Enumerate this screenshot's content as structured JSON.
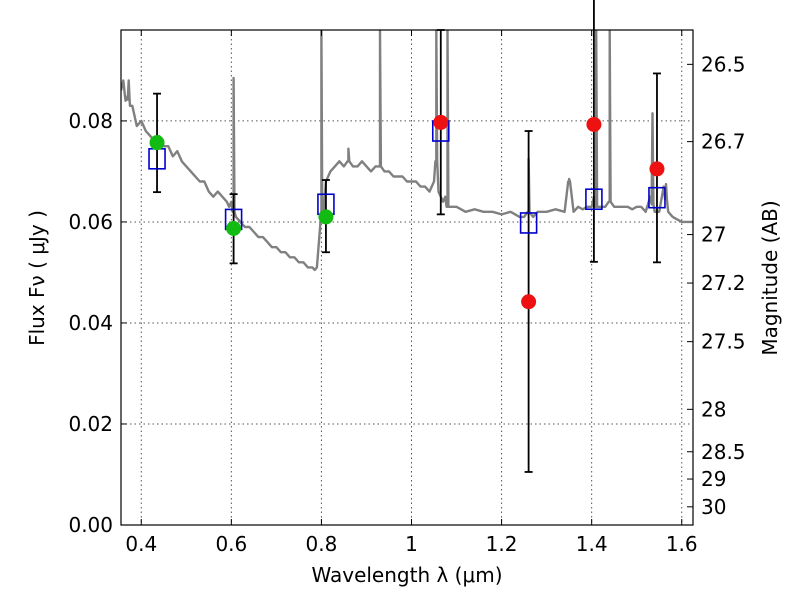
{
  "chart_data": {
    "type": "scatter",
    "xlabel": "Wavelength  λ (μm)",
    "ylabel": "Flux  Fν  ( μJy )",
    "y2label": "Magnitude (AB)",
    "xlim": [
      0.355,
      1.625
    ],
    "ylim": [
      0.0,
      0.098
    ],
    "grid": true,
    "x_ticks": [
      "0.4",
      "0.6",
      "0.8",
      "1",
      "1.2",
      "1.4",
      "1.6"
    ],
    "x_tick_values": [
      0.4,
      0.6,
      0.8,
      1.0,
      1.2,
      1.4,
      1.6
    ],
    "y_ticks": [
      "0.00",
      "0.02",
      "0.04",
      "0.06",
      "0.08"
    ],
    "y_tick_values": [
      0.0,
      0.02,
      0.04,
      0.06,
      0.08
    ],
    "y2_ticks": [
      {
        "label": "26.5",
        "flux": 0.0912
      },
      {
        "label": "26.7",
        "flux": 0.0759
      },
      {
        "label": "27",
        "flux": 0.0575
      },
      {
        "label": "27.2",
        "flux": 0.0479
      },
      {
        "label": "27.5",
        "flux": 0.0363
      },
      {
        "label": "28",
        "flux": 0.0229
      },
      {
        "label": "28.5",
        "flux": 0.0145
      },
      {
        "label": "29",
        "flux": 0.0091
      },
      {
        "label": "30",
        "flux": 0.0036
      }
    ],
    "colors": {
      "model": "#808080",
      "model_photometry": "#0000cc",
      "detections_green": "#11bb11",
      "detections_red": "#ee1111",
      "errorbar": "#000000"
    },
    "model_spectrum": {
      "x": [
        0.355,
        0.36,
        0.365,
        0.37,
        0.375,
        0.38,
        0.39,
        0.4,
        0.41,
        0.42,
        0.43,
        0.44,
        0.45,
        0.46,
        0.47,
        0.48,
        0.49,
        0.5,
        0.51,
        0.52,
        0.53,
        0.54,
        0.55,
        0.56,
        0.57,
        0.58,
        0.59,
        0.595,
        0.6,
        0.605,
        0.61,
        0.62,
        0.63,
        0.64,
        0.65,
        0.66,
        0.67,
        0.68,
        0.69,
        0.7,
        0.71,
        0.72,
        0.73,
        0.74,
        0.75,
        0.76,
        0.77,
        0.78,
        0.785,
        0.79,
        0.8,
        0.805,
        0.81,
        0.82,
        0.83,
        0.84,
        0.85,
        0.86,
        0.87,
        0.88,
        0.89,
        0.9,
        0.91,
        0.92,
        0.93,
        0.94,
        0.95,
        0.96,
        0.97,
        0.98,
        0.99,
        1.0,
        1.01,
        1.02,
        1.03,
        1.04,
        1.05,
        1.055,
        1.06,
        1.065,
        1.07,
        1.075,
        1.08,
        1.09,
        1.1,
        1.12,
        1.14,
        1.16,
        1.18,
        1.2,
        1.22,
        1.24,
        1.25,
        1.26,
        1.27,
        1.28,
        1.3,
        1.32,
        1.34,
        1.35,
        1.36,
        1.37,
        1.38,
        1.39,
        1.4,
        1.405,
        1.41,
        1.42,
        1.43,
        1.44,
        1.45,
        1.46,
        1.47,
        1.48,
        1.49,
        1.5,
        1.51,
        1.52,
        1.53,
        1.54,
        1.55,
        1.56,
        1.57,
        1.58,
        1.6,
        1.625
      ],
      "y": [
        0.086,
        0.088,
        0.084,
        0.085,
        0.083,
        0.083,
        0.079,
        0.08,
        0.078,
        0.077,
        0.076,
        0.077,
        0.075,
        0.075,
        0.073,
        0.074,
        0.072,
        0.071,
        0.07,
        0.069,
        0.068,
        0.068,
        0.066,
        0.065,
        0.066,
        0.065,
        0.064,
        0.063,
        0.064,
        0.062,
        0.061,
        0.06,
        0.059,
        0.059,
        0.058,
        0.057,
        0.057,
        0.056,
        0.055,
        0.055,
        0.054,
        0.054,
        0.053,
        0.053,
        0.052,
        0.052,
        0.051,
        0.051,
        0.0505,
        0.051,
        0.06,
        0.062,
        0.068,
        0.07,
        0.071,
        0.072,
        0.071,
        0.072,
        0.071,
        0.071,
        0.072,
        0.071,
        0.07,
        0.071,
        0.071,
        0.07,
        0.07,
        0.069,
        0.069,
        0.069,
        0.068,
        0.068,
        0.068,
        0.067,
        0.067,
        0.066,
        0.068,
        0.072,
        0.066,
        0.065,
        0.064,
        0.065,
        0.063,
        0.063,
        0.063,
        0.062,
        0.0625,
        0.062,
        0.062,
        0.0615,
        0.062,
        0.061,
        0.061,
        0.062,
        0.061,
        0.062,
        0.062,
        0.0625,
        0.062,
        0.068,
        0.062,
        0.063,
        0.0625,
        0.063,
        0.063,
        0.065,
        0.063,
        0.063,
        0.063,
        0.064,
        0.063,
        0.063,
        0.063,
        0.063,
        0.0625,
        0.063,
        0.063,
        0.062,
        0.065,
        0.062,
        0.062,
        0.067,
        0.062,
        0.061,
        0.06,
        0.06
      ]
    },
    "emission_lines": [
      {
        "x": 0.372,
        "peak": 0.088
      },
      {
        "x": 0.605,
        "peak": 0.0885
      },
      {
        "x": 0.8,
        "peak": 0.098
      },
      {
        "x": 0.86,
        "peak": 0.0745
      },
      {
        "x": 0.93,
        "peak": 0.098
      },
      {
        "x": 1.055,
        "peak": 0.098
      },
      {
        "x": 1.08,
        "peak": 0.098
      },
      {
        "x": 1.26,
        "peak": 0.0725
      },
      {
        "x": 1.35,
        "peak": 0.0685
      },
      {
        "x": 1.41,
        "peak": 0.098
      },
      {
        "x": 1.44,
        "peak": 0.098
      },
      {
        "x": 1.535,
        "peak": 0.0815
      },
      {
        "x": 1.565,
        "peak": 0.0675
      }
    ],
    "model_photometry": {
      "x": [
        0.435,
        0.605,
        0.81,
        1.065,
        1.26,
        1.405,
        1.545
      ],
      "y": [
        0.0725,
        0.0605,
        0.0635,
        0.078,
        0.0598,
        0.0645,
        0.0648
      ]
    },
    "observed": [
      {
        "x": 0.435,
        "y": 0.0757,
        "yerr_low": 0.0098,
        "yerr_high": 0.0097,
        "color": "green"
      },
      {
        "x": 0.605,
        "y": 0.0587,
        "yerr_low": 0.0069,
        "yerr_high": 0.0068,
        "color": "green"
      },
      {
        "x": 0.81,
        "y": 0.061,
        "yerr_low": 0.007,
        "yerr_high": 0.0073,
        "color": "green"
      },
      {
        "x": 1.065,
        "y": 0.0797,
        "yerr_low": 0.0182,
        "yerr_high": 0.0183,
        "color": "red"
      },
      {
        "x": 1.26,
        "y": 0.0442,
        "yerr_low": 0.0337,
        "yerr_high": 0.0338,
        "color": "red"
      },
      {
        "x": 1.405,
        "y": 0.0793,
        "yerr_low": 0.0272,
        "yerr_high": 0.0272,
        "color": "red"
      },
      {
        "x": 1.545,
        "y": 0.0705,
        "yerr_low": 0.0185,
        "yerr_high": 0.0189,
        "color": "red"
      }
    ]
  }
}
